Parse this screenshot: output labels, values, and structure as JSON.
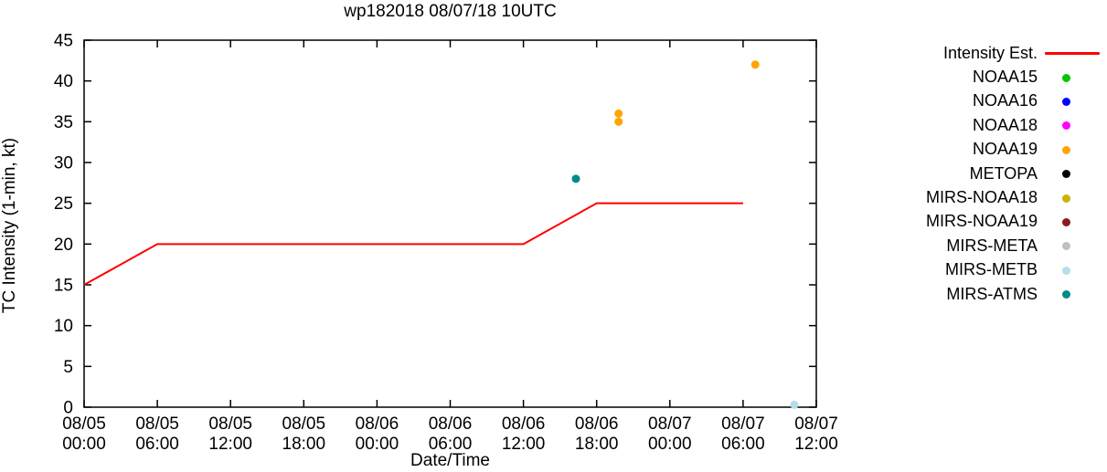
{
  "chart_data": {
    "type": "line",
    "title": "wp182018 08/07/18 10UTC",
    "xlabel": "Date/Time",
    "ylabel": "TC Intensity (1-min, kt)",
    "ylim": [
      0,
      45
    ],
    "y_ticks": [
      0,
      5,
      10,
      15,
      20,
      25,
      30,
      35,
      40,
      45
    ],
    "x_range_hours": [
      0,
      60
    ],
    "x_ticks": [
      {
        "date": "08/05",
        "time": "00:00",
        "hours": 0
      },
      {
        "date": "08/05",
        "time": "06:00",
        "hours": 6
      },
      {
        "date": "08/05",
        "time": "12:00",
        "hours": 12
      },
      {
        "date": "08/05",
        "time": "18:00",
        "hours": 18
      },
      {
        "date": "08/06",
        "time": "00:00",
        "hours": 24
      },
      {
        "date": "08/06",
        "time": "06:00",
        "hours": 30
      },
      {
        "date": "08/06",
        "time": "12:00",
        "hours": 36
      },
      {
        "date": "08/06",
        "time": "18:00",
        "hours": 42
      },
      {
        "date": "08/07",
        "time": "00:00",
        "hours": 48
      },
      {
        "date": "08/07",
        "time": "06:00",
        "hours": 54
      },
      {
        "date": "08/07",
        "time": "12:00",
        "hours": 60
      }
    ],
    "series": [
      {
        "name": "Intensity Est.",
        "type": "line",
        "color": "#ff0000",
        "points": [
          [
            0,
            15
          ],
          [
            6,
            20
          ],
          [
            36,
            20
          ],
          [
            42,
            25
          ],
          [
            54,
            25
          ]
        ]
      },
      {
        "name": "MIRS-ATMS",
        "type": "scatter",
        "color": "#008b8b",
        "points": [
          [
            40.3,
            28
          ]
        ]
      },
      {
        "name": "NOAA19",
        "type": "scatter",
        "color": "#ffa500",
        "points": [
          [
            43.8,
            35
          ],
          [
            43.8,
            36
          ],
          [
            55,
            42
          ]
        ]
      },
      {
        "name": "MIRS-METB",
        "type": "scatter",
        "color": "#b2dfe8",
        "points": [
          [
            58.2,
            0.3
          ]
        ]
      }
    ],
    "legend_position": "right",
    "grid": false,
    "legend": [
      {
        "label": "Intensity Est.",
        "color": "#ff0000",
        "marker": "line"
      },
      {
        "label": "NOAA15",
        "color": "#00c800",
        "marker": "dot"
      },
      {
        "label": "NOAA16",
        "color": "#0000ff",
        "marker": "dot"
      },
      {
        "label": "NOAA18",
        "color": "#ff00ff",
        "marker": "dot"
      },
      {
        "label": "NOAA19",
        "color": "#ffa500",
        "marker": "dot"
      },
      {
        "label": "METOPA",
        "color": "#000000",
        "marker": "dot"
      },
      {
        "label": "MIRS-NOAA18",
        "color": "#c8b400",
        "marker": "dot"
      },
      {
        "label": "MIRS-NOAA19",
        "color": "#8b1a1a",
        "marker": "dot"
      },
      {
        "label": "MIRS-META",
        "color": "#c0c0c0",
        "marker": "dot"
      },
      {
        "label": "MIRS-METB",
        "color": "#b2dfe8",
        "marker": "dot"
      },
      {
        "label": "MIRS-ATMS",
        "color": "#008b8b",
        "marker": "dot"
      }
    ]
  }
}
